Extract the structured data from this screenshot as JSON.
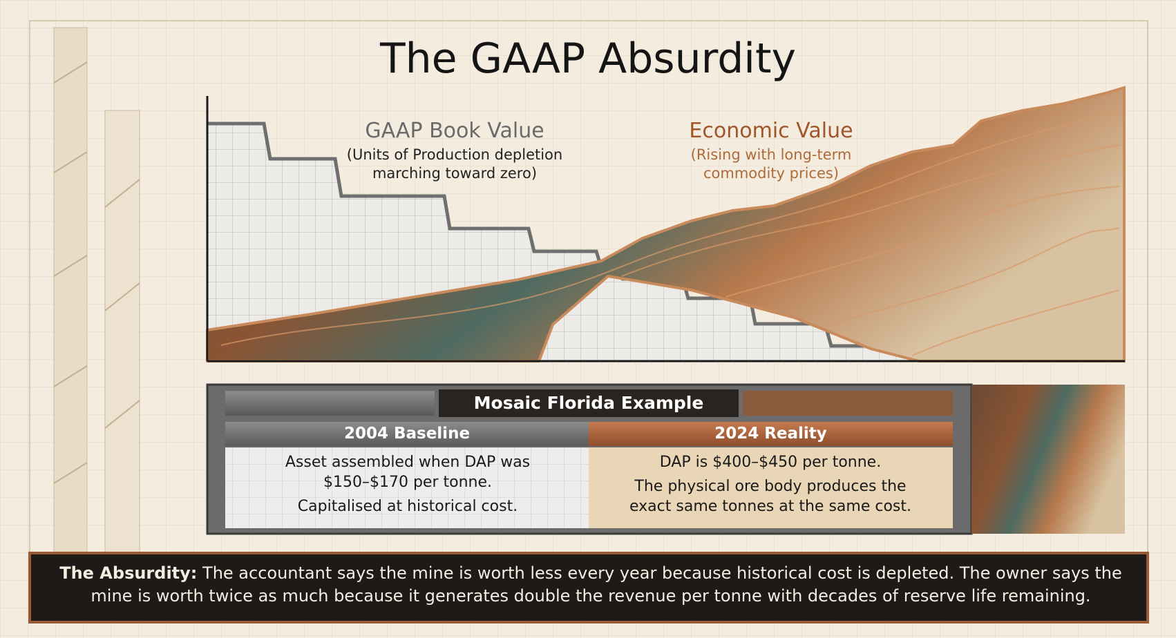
{
  "title": "The GAAP Absurdity",
  "gaap_label": {
    "title": "GAAP Book Value",
    "subtitle": "(Units of Production depletion marching toward zero)"
  },
  "economic_label": {
    "title": "Economic Value",
    "subtitle": "(Rising with long-term commodity prices)"
  },
  "example": {
    "title": "Mosaic Florida Example",
    "left": {
      "header": "2004 Baseline",
      "body": [
        "Asset assembled when DAP was $150–$170 per tonne.",
        "Capitalised at historical cost."
      ]
    },
    "right": {
      "header": "2024 Reality",
      "body": [
        "DAP is $400–$450 per tonne.",
        "The physical ore body produces the exact same tonnes at the same cost."
      ]
    }
  },
  "footer": {
    "lead": "The Absurdity:",
    "text": "The accountant says the mine is worth less every year because historical cost is depleted. The owner says the mine is worth twice as much because it generates double the revenue per tonne with decades of reserve life remaining."
  }
}
